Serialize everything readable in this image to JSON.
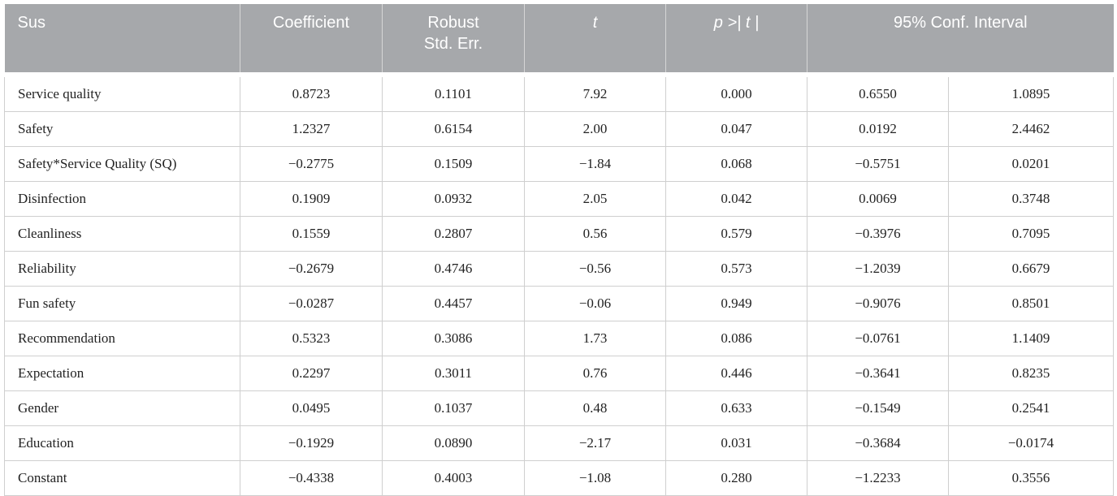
{
  "table": {
    "header": [
      "Sus",
      "Coefficient",
      [
        "Robust",
        "Std. Err."
      ],
      "t",
      "p >| t |",
      "95% Conf. Interval"
    ],
    "rows": [
      [
        "Service quality",
        "0.8723",
        "0.1101",
        "7.92",
        "0.000",
        "0.6550",
        "1.0895"
      ],
      [
        "Safety",
        "1.2327",
        "0.6154",
        "2.00",
        "0.047",
        "0.0192",
        "2.4462"
      ],
      [
        "Safety*Service Quality (SQ)",
        "−0.2775",
        "0.1509",
        "−1.84",
        "0.068",
        "−0.5751",
        "0.0201"
      ],
      [
        "Disinfection",
        "0.1909",
        "0.0932",
        "2.05",
        "0.042",
        "0.0069",
        "0.3748"
      ],
      [
        "Cleanliness",
        "0.1559",
        "0.2807",
        "0.56",
        "0.579",
        "−0.3976",
        "0.7095"
      ],
      [
        "Reliability",
        "−0.2679",
        "0.4746",
        "−0.56",
        "0.573",
        "−1.2039",
        "0.6679"
      ],
      [
        "Fun safety",
        "−0.0287",
        "0.4457",
        "−0.06",
        "0.949",
        "−0.9076",
        "0.8501"
      ],
      [
        "Recommendation",
        "0.5323",
        "0.3086",
        "1.73",
        "0.086",
        "−0.0761",
        "1.1409"
      ],
      [
        "Expectation",
        "0.2297",
        "0.3011",
        "0.76",
        "0.446",
        "−0.3641",
        "0.8235"
      ],
      [
        "Gender",
        "0.0495",
        "0.1037",
        "0.48",
        "0.633",
        "−0.1549",
        "0.2541"
      ],
      [
        "Education",
        "−0.1929",
        "0.0890",
        "−2.17",
        "0.031",
        "−0.3684",
        "−0.0174"
      ],
      [
        "Constant",
        "−0.4338",
        "0.4003",
        "−1.08",
        "0.280",
        "−1.2233",
        "0.3556"
      ]
    ]
  }
}
